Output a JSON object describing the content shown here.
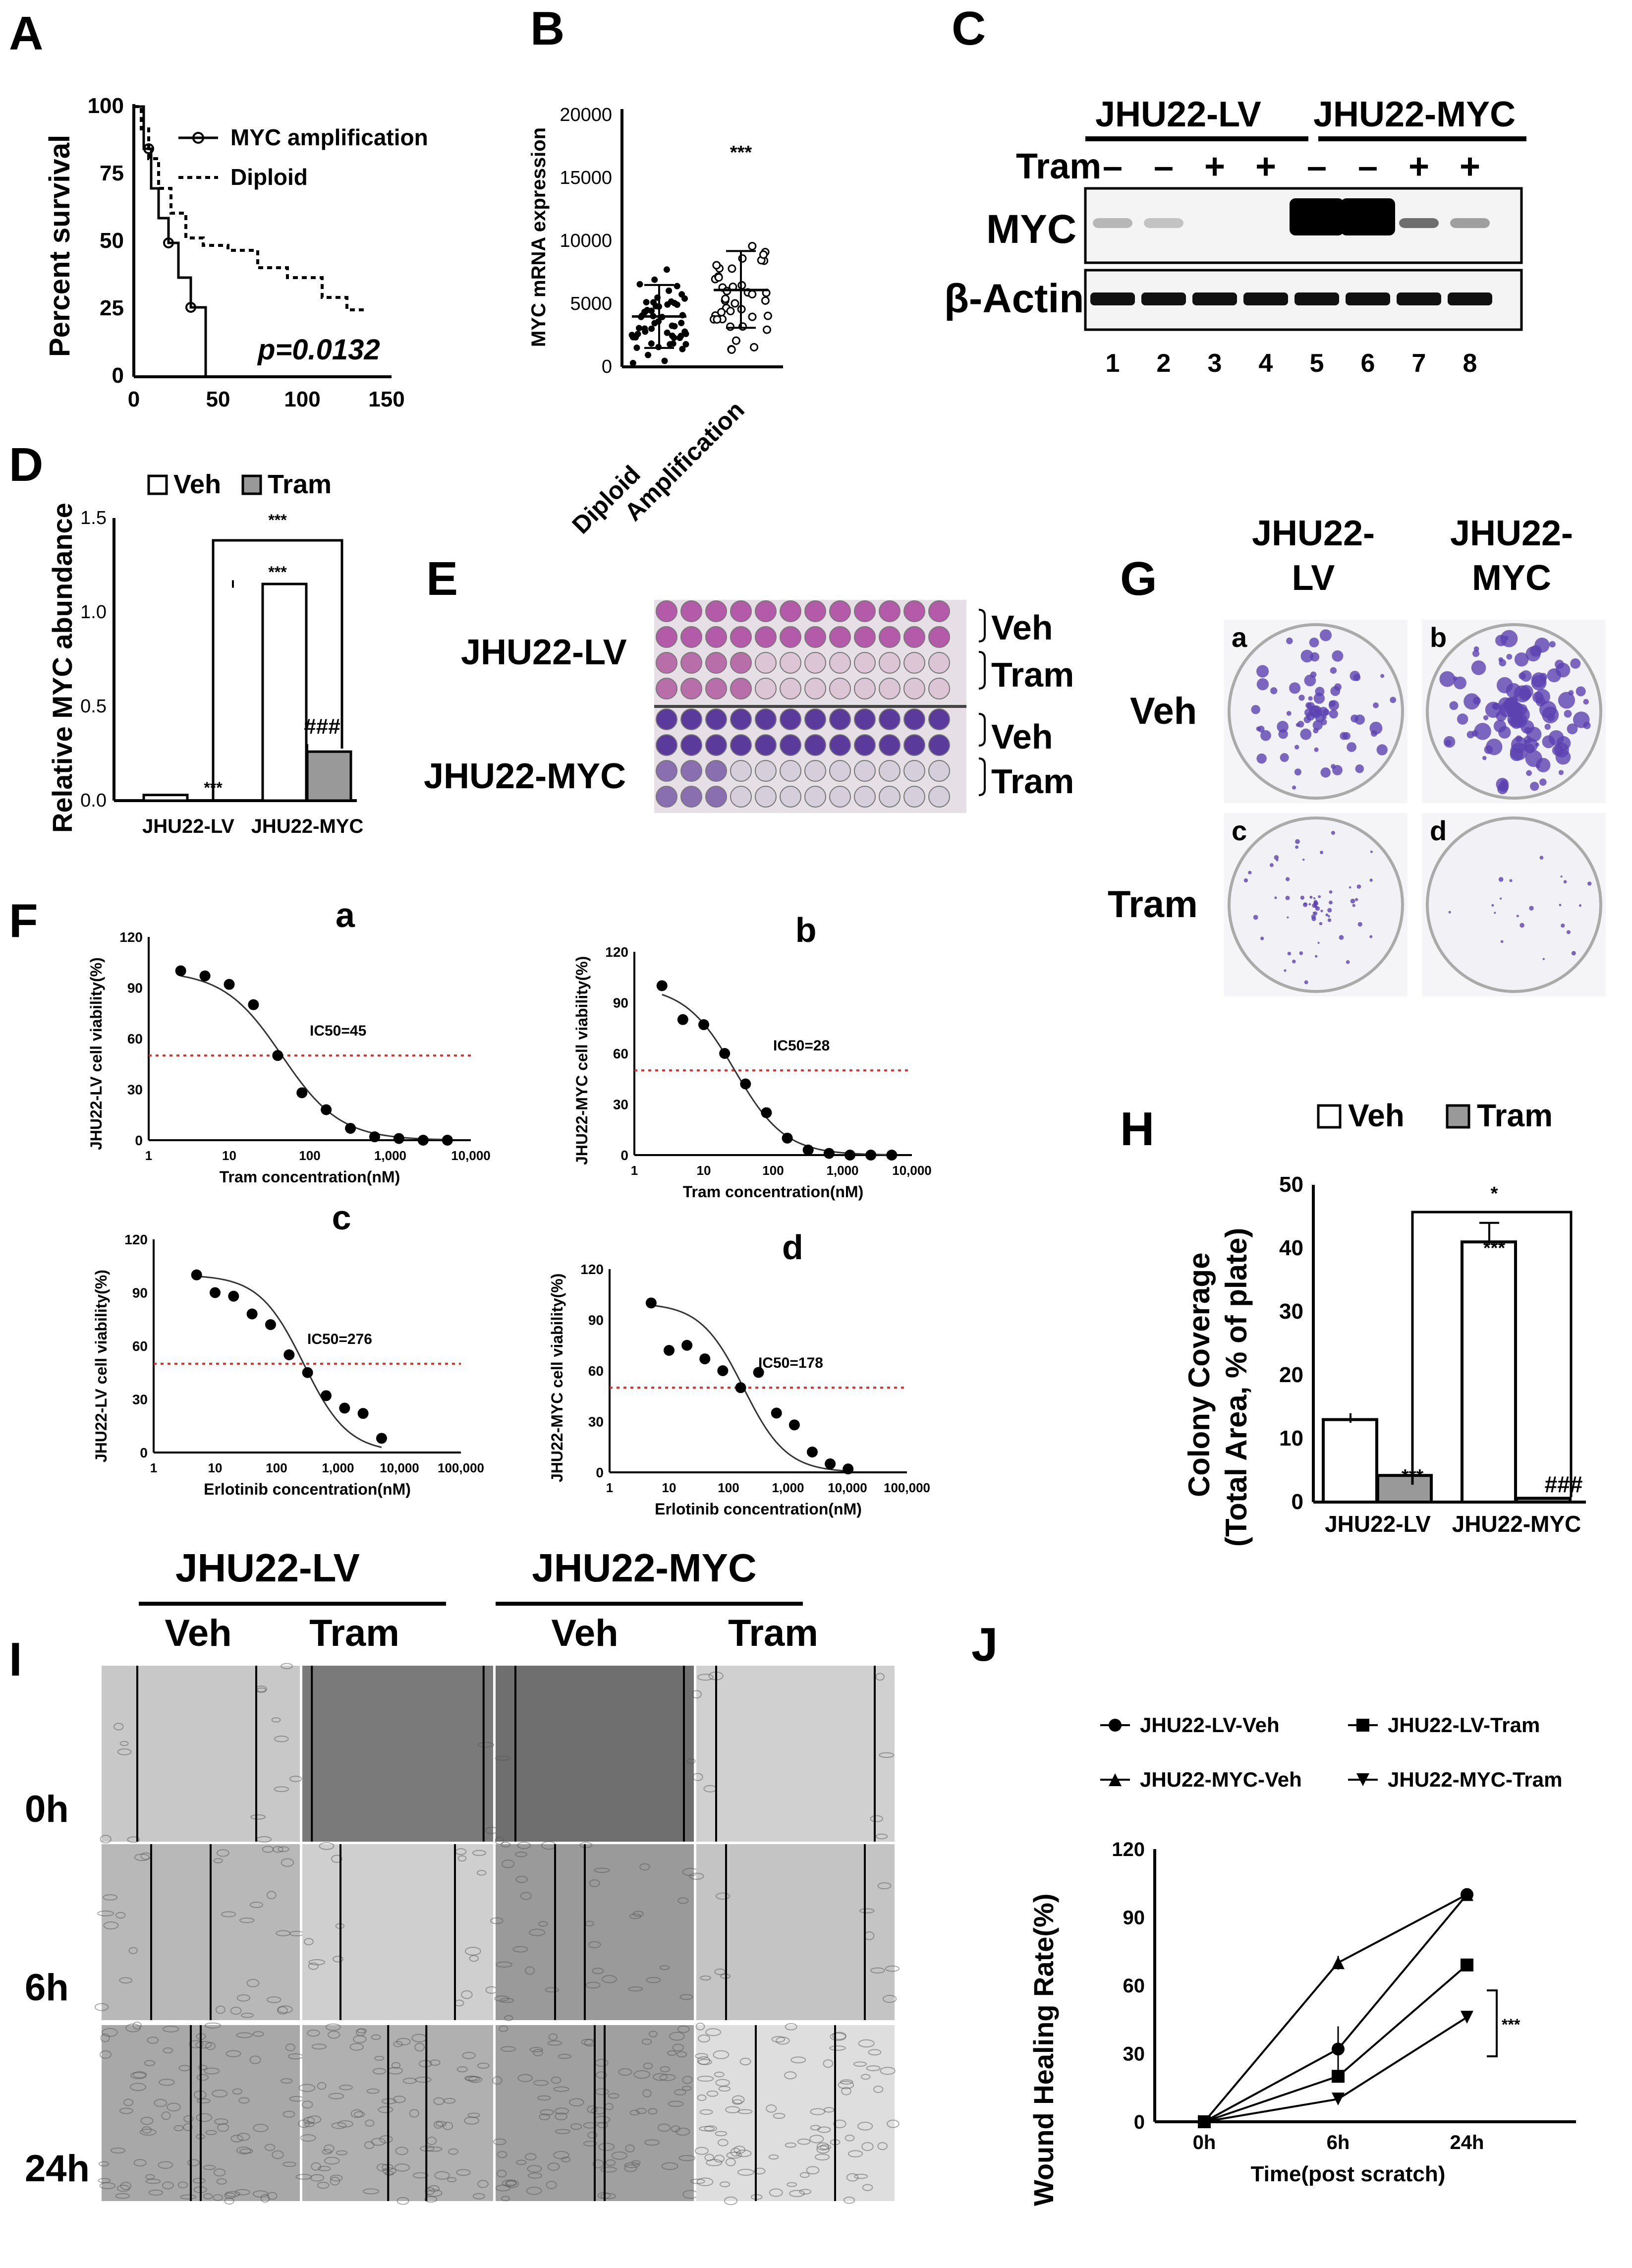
{
  "panels": {
    "A": "A",
    "B": "B",
    "C": "C",
    "D": "D",
    "E": "E",
    "F": "F",
    "G": "G",
    "H": "H",
    "I": "I",
    "J": "J"
  },
  "a": {
    "ylabel": "Percent survival",
    "legend": [
      "MYC amplification",
      "Diploid"
    ],
    "p": "p=0.0132",
    "yt": [
      "0",
      "25",
      "50",
      "75",
      "100"
    ],
    "xt": [
      "0",
      "50",
      "100",
      "150"
    ]
  },
  "b": {
    "ylabel": "MYC mRNA expression",
    "yt": [
      "0",
      "5000",
      "10000",
      "15000",
      "20000"
    ],
    "cats": [
      "Diploid",
      "Amplification"
    ],
    "star": "***"
  },
  "c": {
    "g1": "JHU22-LV",
    "g2": "JHU22-MYC",
    "tram": "Tram",
    "signs": [
      "–",
      "–",
      "+",
      "+",
      "–",
      "–",
      "+",
      "+"
    ],
    "myc": "MYC",
    "actin": "β-Actin",
    "lanes": [
      "1",
      "2",
      "3",
      "4",
      "5",
      "6",
      "7",
      "8"
    ]
  },
  "d": {
    "ylabel": "Relative MYC abundance",
    "legend": [
      "Veh",
      "Tram"
    ],
    "yt": [
      "0.0",
      "0.5",
      "1.0",
      "1.5"
    ],
    "cats": [
      "JHU22-LV",
      "JHU22-MYC"
    ],
    "s1": "***",
    "s2": "***",
    "s3": "***",
    "s4": "###"
  },
  "e": {
    "lv": "JHU22-LV",
    "myc": "JHU22-MYC",
    "veh": "Veh",
    "tram": "Tram"
  },
  "f": {
    "a": {
      "tag": "a",
      "ylabel": "JHU22-LV cell viability(%)",
      "xlabel": "Tram concentration(nM)",
      "ic": "IC50=45",
      "xt": [
        "1",
        "10",
        "100",
        "1,000",
        "10,000"
      ],
      "yt": [
        "0",
        "30",
        "60",
        "90",
        "120"
      ]
    },
    "b": {
      "tag": "b",
      "ylabel": "JHU22-MYC cell viability(%)",
      "xlabel": "Tram concentration(nM)",
      "ic": "IC50=28",
      "xt": [
        "1",
        "10",
        "100",
        "1,000",
        "10,000"
      ],
      "yt": [
        "0",
        "30",
        "60",
        "90",
        "120"
      ]
    },
    "c": {
      "tag": "c",
      "ylabel": "JHU22-LV cell viability(%)",
      "xlabel": "Erlotinib concentration(nM)",
      "ic": "IC50=276",
      "xt": [
        "1",
        "10",
        "100",
        "1,000",
        "10,000",
        "100,000"
      ],
      "yt": [
        "0",
        "30",
        "60",
        "90",
        "120"
      ]
    },
    "d": {
      "tag": "d",
      "ylabel": "JHU22-MYC cell viability(%)",
      "xlabel": "Erlotinib concentration(nM)",
      "ic": "IC50=178",
      "xt": [
        "1",
        "10",
        "100",
        "1,000",
        "10,000",
        "100,000"
      ],
      "yt": [
        "0",
        "30",
        "60",
        "90",
        "120"
      ]
    }
  },
  "g": {
    "c1": "JHU22-",
    "c1b": "LV",
    "c2": "JHU22-",
    "c2b": "MYC",
    "veh": "Veh",
    "tram": "Tram",
    "tags": [
      "a",
      "b",
      "c",
      "d"
    ]
  },
  "h": {
    "ylabel1": "Colony Coverage",
    "ylabel2": "(Total Area, % of plate)",
    "legend": [
      "Veh",
      "Tram"
    ],
    "yt": [
      "0",
      "10",
      "20",
      "30",
      "40",
      "50"
    ],
    "cats": [
      "JHU22-LV",
      "JHU22-MYC"
    ],
    "s1": "*",
    "s2": "***",
    "s3": "***",
    "s4": "###"
  },
  "i": {
    "g1": "JHU22-LV",
    "g2": "JHU22-MYC",
    "cols": [
      "Veh",
      "Tram",
      "Veh",
      "Tram"
    ],
    "rows": [
      "0h",
      "6h",
      "24h"
    ]
  },
  "j": {
    "legend": [
      "JHU22-LV-Veh",
      "JHU22-LV-Tram",
      "JHU22-MYC-Veh",
      "JHU22-MYC-Tram"
    ],
    "ylabel": "Wound Healing Rate(%)",
    "xlabel": "Time(post scratch)",
    "xt": [
      "0h",
      "6h",
      "24h"
    ],
    "yt": [
      "0",
      "30",
      "60",
      "90",
      "120"
    ],
    "star": "***"
  },
  "chart_data": [
    {
      "type": "line",
      "title": "A",
      "xlabel": "",
      "ylabel": "Percent survival",
      "xlim": [
        0,
        150
      ],
      "ylim": [
        0,
        100
      ],
      "series": [
        {
          "name": "MYC amplification",
          "x": [
            0,
            5,
            10,
            15,
            20,
            25,
            35,
            40,
            42
          ],
          "y": [
            100,
            85,
            60,
            40,
            35,
            27,
            27,
            27,
            0
          ]
        },
        {
          "name": "Diploid",
          "x": [
            0,
            5,
            10,
            20,
            30,
            40,
            50,
            60,
            80,
            100,
            120,
            135
          ],
          "y": [
            100,
            90,
            75,
            60,
            50,
            48,
            48,
            45,
            40,
            30,
            25,
            24
          ]
        }
      ],
      "p": "p=0.0132"
    },
    {
      "type": "scatter",
      "title": "B",
      "ylabel": "MYC mRNA expression",
      "categories": [
        "Diploid",
        "Amplification"
      ],
      "mean": [
        4000,
        6100
      ],
      "sd_upper": [
        6500,
        9200
      ],
      "sd_lower": [
        1500,
        3100
      ],
      "ylim": [
        0,
        20000
      ]
    },
    {
      "type": "bar",
      "title": "D",
      "ylabel": "Relative MYC abundance",
      "categories": [
        "JHU22-LV",
        "JHU22-MYC"
      ],
      "series": [
        {
          "name": "Veh",
          "values": [
            0.03,
            1.15
          ]
        },
        {
          "name": "Tram",
          "values": [
            0.0,
            0.26
          ]
        }
      ],
      "ylim": [
        0,
        1.5
      ]
    },
    {
      "type": "scatter",
      "title": "F-a",
      "xlabel": "Tram concentration(nM)",
      "ylabel": "JHU22-LV cell viability(%)",
      "x": [
        2.5,
        5,
        10,
        20,
        40,
        80,
        160,
        320,
        640,
        1280,
        2560,
        5120
      ],
      "y": [
        100,
        97,
        92,
        80,
        50,
        28,
        18,
        7,
        2,
        1,
        0,
        0
      ],
      "ic50": 45
    },
    {
      "type": "scatter",
      "title": "F-b",
      "xlabel": "Tram concentration(nM)",
      "ylabel": "JHU22-MYC cell viability(%)",
      "x": [
        2.5,
        5,
        10,
        20,
        40,
        80,
        160,
        320,
        640,
        1280,
        2560,
        5120
      ],
      "y": [
        100,
        80,
        77,
        60,
        42,
        25,
        10,
        3,
        1,
        0,
        0,
        0
      ],
      "ic50": 28
    },
    {
      "type": "scatter",
      "title": "F-c",
      "xlabel": "Erlotinib concentration(nM)",
      "ylabel": "JHU22-LV cell viability(%)",
      "x": [
        5,
        10,
        20,
        40,
        80,
        160,
        320,
        640,
        1280,
        2560,
        5120
      ],
      "y": [
        100,
        90,
        88,
        78,
        72,
        55,
        45,
        32,
        25,
        22,
        8
      ],
      "ic50": 276
    },
    {
      "type": "scatter",
      "title": "F-d",
      "xlabel": "Erlotinib concentration(nM)",
      "ylabel": "JHU22-MYC cell viability(%)",
      "x": [
        5,
        10,
        20,
        40,
        80,
        160,
        320,
        640,
        1280,
        2560,
        5120,
        10240
      ],
      "y": [
        100,
        72,
        75,
        67,
        60,
        50,
        59,
        35,
        28,
        12,
        5,
        2
      ],
      "ic50": 178
    },
    {
      "type": "bar",
      "title": "H",
      "ylabel": "Colony Coverage (Total Area, % of plate)",
      "categories": [
        "JHU22-LV",
        "JHU22-MYC"
      ],
      "series": [
        {
          "name": "Veh",
          "values": [
            13,
            41
          ]
        },
        {
          "name": "Tram",
          "values": [
            4.2,
            0.6
          ]
        }
      ],
      "ylim": [
        0,
        50
      ]
    },
    {
      "type": "line",
      "title": "J",
      "xlabel": "Time(post scratch)",
      "ylabel": "Wound Healing Rate(%)",
      "categories": [
        "0h",
        "6h",
        "24h"
      ],
      "series": [
        {
          "name": "JHU22-LV-Veh",
          "values": [
            0,
            32,
            100
          ]
        },
        {
          "name": "JHU22-LV-Tram",
          "values": [
            0,
            20,
            69
          ]
        },
        {
          "name": "JHU22-MYC-Veh",
          "values": [
            0,
            70,
            100
          ]
        },
        {
          "name": "JHU22-MYC-Tram",
          "values": [
            0,
            10,
            46
          ]
        }
      ],
      "ylim": [
        0,
        120
      ]
    }
  ]
}
